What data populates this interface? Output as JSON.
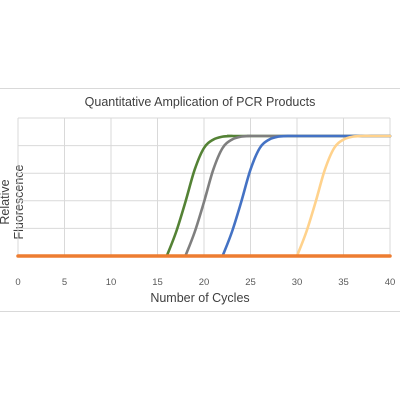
{
  "chart_data": {
    "type": "line",
    "title": "Quantitative Amplication of PCR Products",
    "xlabel": "Number of Cycles",
    "ylabel": "Relative Fluorescence",
    "xlim": [
      0,
      40
    ],
    "xticks": [
      "0",
      "5",
      "10",
      "15",
      "20",
      "25",
      "30",
      "35",
      "40"
    ],
    "ylim": [
      0,
      1.15
    ],
    "ygrid_lines": 5,
    "xgrid_lines": 9,
    "grid": true,
    "legend": "none",
    "series": [
      {
        "color": "#548235",
        "x": [
          16,
          17,
          18,
          19,
          20,
          21,
          22,
          23,
          24,
          40
        ],
        "y": [
          0,
          0.2,
          0.45,
          0.72,
          0.9,
          0.97,
          0.995,
          1.0,
          1.0,
          1.0
        ]
      },
      {
        "color": "#7f7f7f",
        "x": [
          18,
          19,
          20,
          21,
          22,
          23,
          24,
          25,
          26,
          40
        ],
        "y": [
          0,
          0.2,
          0.45,
          0.72,
          0.9,
          0.97,
          0.995,
          1.0,
          1.0,
          1.0
        ]
      },
      {
        "color": "#4472c4",
        "x": [
          22,
          23,
          24,
          25,
          26,
          27,
          28,
          29,
          30,
          40
        ],
        "y": [
          0,
          0.2,
          0.45,
          0.72,
          0.9,
          0.97,
          0.995,
          1.0,
          1.0,
          1.0
        ]
      },
      {
        "color": "#ffd28c",
        "x": [
          30,
          31,
          32,
          33,
          34,
          35,
          36,
          37,
          38,
          40
        ],
        "y": [
          0,
          0.2,
          0.45,
          0.72,
          0.9,
          0.97,
          0.995,
          1.0,
          1.0,
          1.0
        ]
      },
      {
        "color": "#ed7d31",
        "x": [
          0,
          40
        ],
        "y": [
          0,
          0
        ]
      }
    ]
  }
}
